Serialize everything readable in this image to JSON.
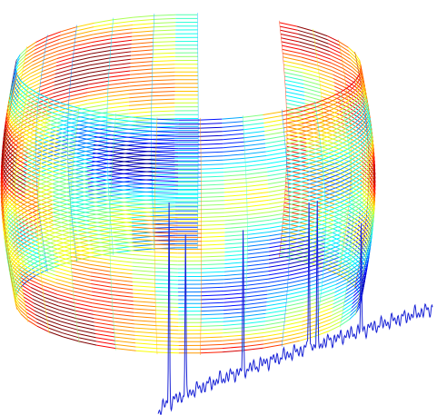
{
  "figure": {
    "subject": "spectrum-wrapped-cylindrical-mesh",
    "colormap": [
      "#00007f",
      "#0000ff",
      "#0080ff",
      "#00ffff",
      "#80ff80",
      "#ffff00",
      "#ff8000",
      "#ff0000",
      "#7f0000"
    ],
    "mesh_rows": 60,
    "mesh_cols": 46,
    "gap": {
      "start_fraction": 0.02,
      "end_fraction": 0.06
    },
    "trace_color": "#1a24d6",
    "trace_peaks": [
      {
        "t": 0.04,
        "height": 0.92
      },
      {
        "t": 0.1,
        "height": 0.74
      },
      {
        "t": 0.31,
        "height": 0.69
      },
      {
        "t": 0.55,
        "height": 0.86
      },
      {
        "t": 0.58,
        "height": 0.78
      },
      {
        "t": 0.74,
        "height": 0.63
      }
    ]
  }
}
